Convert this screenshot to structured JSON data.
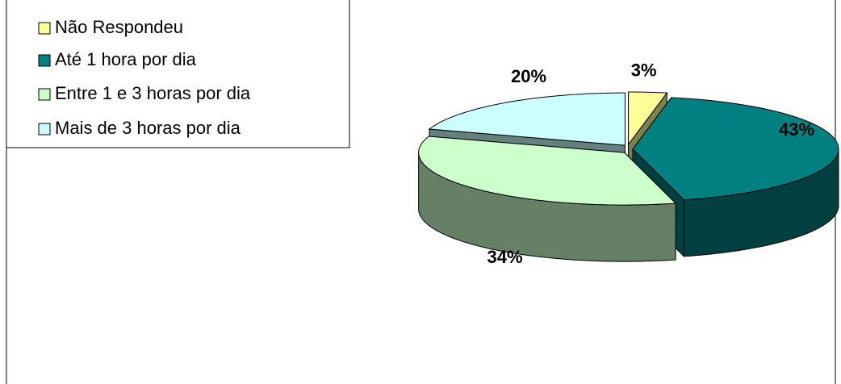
{
  "chart_data": {
    "type": "pie3d",
    "categories": [
      "Não Respondeu",
      "Até 1 hora por dia",
      "Entre 1 e 3 horas por dia",
      "Mais de 3 horas por dia"
    ],
    "values": [
      3,
      43,
      34,
      20
    ],
    "value_labels": [
      "3%",
      "43%",
      "34%",
      "20%"
    ],
    "colors": [
      "#ffff99",
      "#008080",
      "#ccffcc",
      "#ccffff"
    ],
    "legend": "top-left"
  }
}
